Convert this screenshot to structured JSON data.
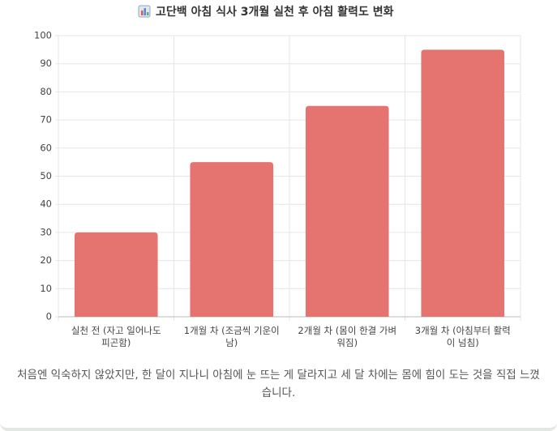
{
  "chart_data": {
    "type": "bar",
    "title": "고단백 아침 식사 3개월 실천 후 아침 활력도 변화",
    "categories": [
      "실천 전 (자고 일어나도 피곤함)",
      "1개월 차 (조금씩 기운이 남)",
      "2개월 차 (몸이 한결 가벼워짐)",
      "3개월 차 (아침부터 활력이 넘침)"
    ],
    "values": [
      30,
      55,
      75,
      95
    ],
    "color": "#e5736f",
    "ylim": [
      0,
      100
    ],
    "yticks": [
      0,
      10,
      20,
      30,
      40,
      50,
      60,
      70,
      80,
      90,
      100
    ],
    "grid": true,
    "caption": "처음엔 익숙하지 않았지만, 한 달이 지나니 아침에 눈 뜨는 게 달라지고 세 달 차에는 몸에 힘이 도는 것을 직접 느꼈습니다."
  }
}
